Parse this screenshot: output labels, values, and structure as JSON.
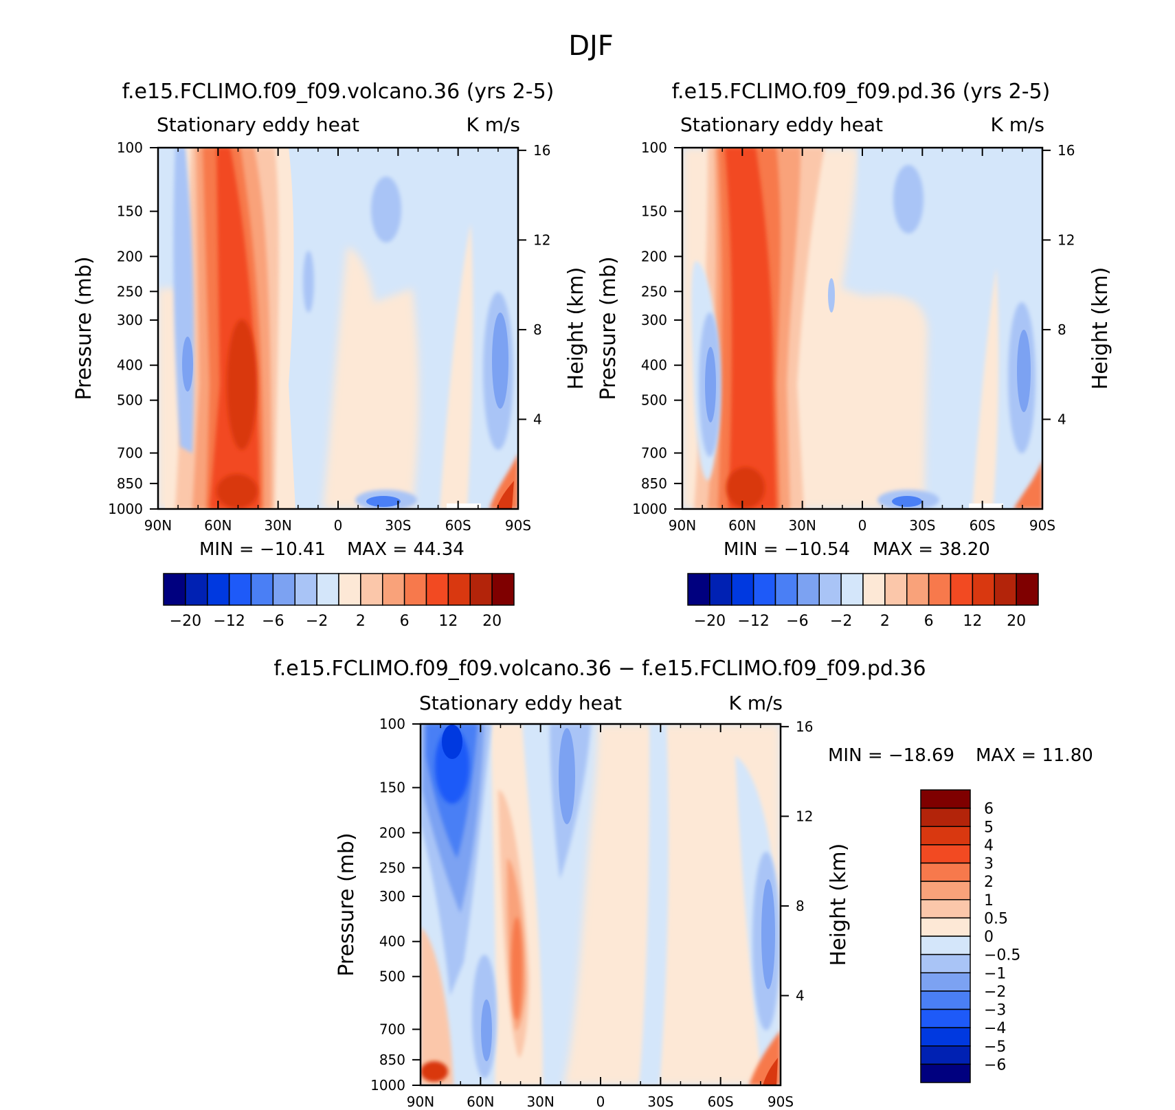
{
  "figure_title": "DJF",
  "colors": {
    "main_levels": [
      "#00007F",
      "#0021B3",
      "#0039E0",
      "#1E5AF8",
      "#4A7FF5",
      "#7CA2F2",
      "#A9C4F6",
      "#D4E6FA",
      "#FDE8D6",
      "#FBC7AA",
      "#F9A27A",
      "#F7794C",
      "#F24A22",
      "#D93810",
      "#B3240A",
      "#7F0000"
    ],
    "diff_levels": [
      "#00007F",
      "#0021B3",
      "#0039E0",
      "#1E5AF8",
      "#4A7FF5",
      "#7CA2F2",
      "#A9C4F6",
      "#D4E6FA",
      "#FDE8D6",
      "#FBC7AA",
      "#F9A27A",
      "#F7794C",
      "#F24A22",
      "#D93810",
      "#B3240A",
      "#7F0000"
    ]
  },
  "chart_data": [
    {
      "type": "contour",
      "id": "volcano",
      "title": "f.e15.FCLIMO.f09_f09.volcano.36 (yrs 2-5)",
      "left_label": "Stationary eddy heat",
      "right_label": "K m/s",
      "xlabel": "",
      "ylabel": "Pressure (mb)",
      "ylabel_right": "Height (km)",
      "x_ticks": [
        "90N",
        "60N",
        "30N",
        "0",
        "30S",
        "60S",
        "90S"
      ],
      "y_ticks": [
        100,
        150,
        200,
        250,
        300,
        400,
        500,
        700,
        850,
        1000
      ],
      "y_ticks_right": [
        16,
        12,
        8,
        4
      ],
      "xlim": [
        90,
        -90
      ],
      "ylim": [
        1000,
        100
      ],
      "min_text": "MIN = −10.41",
      "max_text": "MAX = 44.34",
      "colorbar_labels": [
        "−20",
        "−12",
        "−6",
        "−2",
        "2",
        "6",
        "12",
        "20"
      ],
      "features": [
        {
          "lat": 75,
          "p": 400,
          "value": -4,
          "note": "negative column near 75N"
        },
        {
          "lat": 45,
          "p": 450,
          "value": 20,
          "note": "maximum heat flux core near 45N"
        },
        {
          "lat": 42,
          "p": 900,
          "value": 25
        },
        {
          "lat": -25,
          "p": 140,
          "value": -3
        },
        {
          "lat": -25,
          "p": 960,
          "value": -6
        },
        {
          "lat": -80,
          "p": 450,
          "value": -4
        },
        {
          "lat": -85,
          "p": 930,
          "value": 20
        }
      ]
    },
    {
      "type": "contour",
      "id": "pd",
      "title": "f.e15.FCLIMO.f09_f09.pd.36 (yrs 2-5)",
      "left_label": "Stationary eddy heat",
      "right_label": "K m/s",
      "xlabel": "",
      "ylabel": "Pressure (mb)",
      "ylabel_right": "Height (km)",
      "x_ticks": [
        "90N",
        "60N",
        "30N",
        "0",
        "30S",
        "60S",
        "90S"
      ],
      "y_ticks": [
        100,
        150,
        200,
        250,
        300,
        400,
        500,
        700,
        850,
        1000
      ],
      "y_ticks_right": [
        16,
        12,
        8,
        4
      ],
      "xlim": [
        90,
        -90
      ],
      "ylim": [
        1000,
        100
      ],
      "min_text": "MIN = −10.54",
      "max_text": "MAX = 38.20",
      "colorbar_labels": [
        "−20",
        "−12",
        "−6",
        "−2",
        "2",
        "6",
        "12",
        "20"
      ],
      "features": [
        {
          "lat": 77,
          "p": 450,
          "value": -4
        },
        {
          "lat": 48,
          "p": 400,
          "value": 14
        },
        {
          "lat": 45,
          "p": 900,
          "value": 20
        },
        {
          "lat": -27,
          "p": 140,
          "value": -3
        },
        {
          "lat": -25,
          "p": 960,
          "value": -6
        },
        {
          "lat": -80,
          "p": 450,
          "value": -4
        },
        {
          "lat": -85,
          "p": 930,
          "value": 15
        }
      ]
    },
    {
      "type": "contour",
      "id": "difference",
      "title": "f.e15.FCLIMO.f09_f09.volcano.36 − f.e15.FCLIMO.f09_f09.pd.36",
      "left_label": "Stationary eddy heat",
      "right_label": "K m/s",
      "xlabel": "",
      "ylabel": "Pressure (mb)",
      "ylabel_right": "Height (km)",
      "x_ticks": [
        "90N",
        "60N",
        "30N",
        "0",
        "30S",
        "60S",
        "90S"
      ],
      "y_ticks": [
        100,
        150,
        200,
        250,
        300,
        400,
        500,
        700,
        850,
        1000
      ],
      "y_ticks_right": [
        16,
        12,
        8,
        4
      ],
      "xlim": [
        90,
        -90
      ],
      "ylim": [
        1000,
        100
      ],
      "min_text": "MIN = −18.69",
      "max_text": "MAX = 11.80",
      "colorbar_labels": [
        "6",
        "5",
        "4",
        "3",
        "2",
        "1",
        "0.5",
        "0",
        "−0.5",
        "−1",
        "−2",
        "−3",
        "−4",
        "−5",
        "−6"
      ],
      "features": [
        {
          "lat": 75,
          "p": 150,
          "value": -5,
          "note": "strong negative near 75N upper levels"
        },
        {
          "lat": 45,
          "p": 450,
          "value": 3
        },
        {
          "lat": 55,
          "p": 850,
          "value": -2
        },
        {
          "lat": 30,
          "p": 200,
          "value": -2
        },
        {
          "lat": 82,
          "p": 950,
          "value": 4
        },
        {
          "lat": -85,
          "p": 400,
          "value": -2
        },
        {
          "lat": -85,
          "p": 950,
          "value": 4
        }
      ]
    }
  ]
}
